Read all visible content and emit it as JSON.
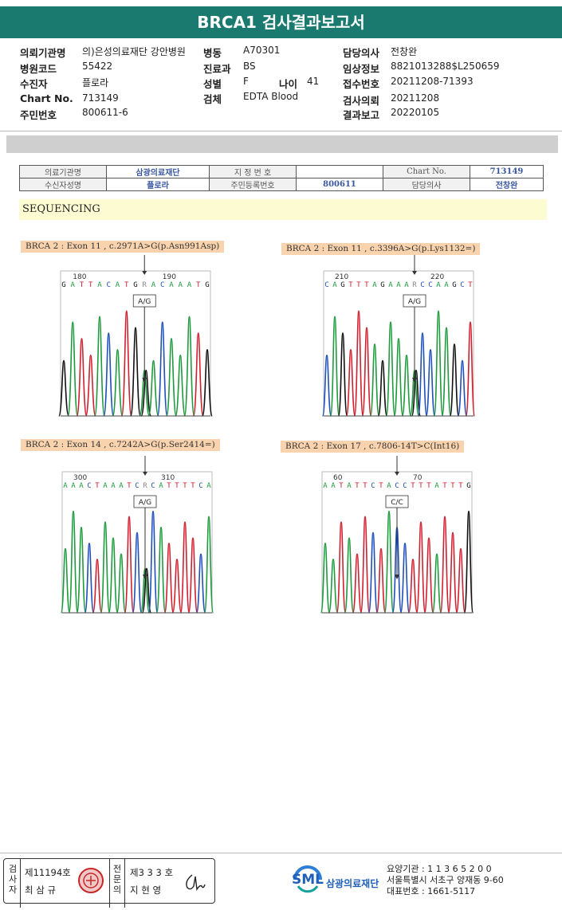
{
  "report_title": "BRCA1 검사결과보고서",
  "info": {
    "institution": {
      "label": "의뢰기관명",
      "value": "의)은성의료재단 강안병원"
    },
    "hospital_code": {
      "label": "병원코드",
      "value": "55422"
    },
    "recipient": {
      "label": "수진자",
      "value": "플로라"
    },
    "chart_no": {
      "label": "Chart No.",
      "value": "713149"
    },
    "resident_no": {
      "label": "주민번호",
      "value": "800611-6"
    },
    "ward": {
      "label": "병동",
      "value": "A70301"
    },
    "department": {
      "label": "진료과",
      "value": "BS"
    },
    "sex": {
      "label": "성별",
      "value": "F"
    },
    "age": {
      "label": "나이",
      "value": "41"
    },
    "specimen": {
      "label": "검체",
      "value": "EDTA Blood"
    },
    "doctor": {
      "label": "담당의사",
      "value": "전창완"
    },
    "clinical": {
      "label": "임상정보",
      "value": "8821013288$L250659"
    },
    "receipt_no": {
      "label": "접수번호",
      "value": "20211208-71393"
    },
    "request_date": {
      "label": "검사의뢰",
      "value": "20211208"
    },
    "report_date": {
      "label": "결과보고",
      "value": "20220105"
    }
  },
  "lab_table": {
    "r1": [
      "의료기관명",
      "삼광의료재단",
      "지 정 번 호",
      "",
      "Chart No.",
      "713149"
    ],
    "r2": [
      "수신자성명",
      "플로라",
      "주민등록번호",
      "800611",
      "담당의사",
      "전창완"
    ]
  },
  "section_title": "SEQUENCING",
  "panels": [
    {
      "label": "BRCA 2 : Exon 11 , c.2971A>G(p.Asn991Asp)",
      "seq": "GATTACATGRACAAATG",
      "pos_left": "180",
      "pos_right": "190",
      "call": "A/G"
    },
    {
      "label": "BRCA 2 : Exon 11 , c.3396A>G(p.Lys1132=)",
      "seq": "CAGTTTAGAAARCCAAGCT",
      "pos_left": "210",
      "pos_right": "220",
      "call": "A/G"
    },
    {
      "label": "BRCA 2 : Exon 14 , c.7242A>G(p.Ser2414=)",
      "seq": "AAACTAAATCRCATTTTCA",
      "pos_left": "300",
      "pos_right": "310",
      "call": "A/G"
    },
    {
      "label": "BRCA 2 : Exon 17 , c.7806-14T>C(Int16)",
      "seq": "AATATTCTACCTTTATTTG",
      "pos_left": "60",
      "pos_right": "70",
      "call": "C/C"
    }
  ],
  "footer": {
    "tester_label": "검사자",
    "tester_no": "제11194호",
    "tester_name": "최 삼 규",
    "doctor_label": "전문의",
    "doctor_no": "제3 3 3 호",
    "doctor_name": "지 현 영",
    "org_abbr": "SML",
    "org_name": "삼광의료재단",
    "care_no": "요양기관 : 1 1 3 6 5 2 0 0",
    "address": "서울특별시 서초구 양재동 9-60",
    "phone": "대표번호 : 1661-5117"
  },
  "colors": {
    "header_bg": "#1a7a6f",
    "A": "#1f9a3e",
    "C": "#1f4fb8",
    "G": "#111111",
    "T": "#d02030"
  }
}
